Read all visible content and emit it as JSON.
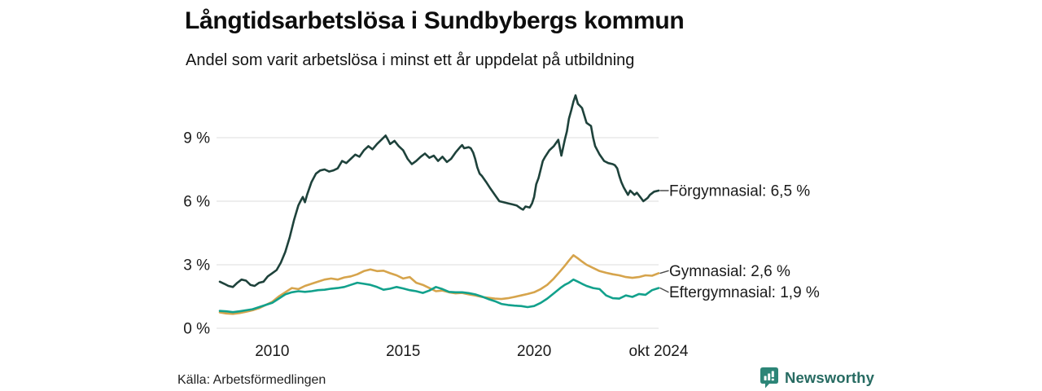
{
  "branding": {
    "name": "Newsworthy",
    "icon": "bar-chart-speech-bubble-icon"
  },
  "colors": {
    "background": "#ffffff",
    "grid": "#e3e3e3",
    "axis_text": "#1a1a1a",
    "leader": "#4a4a4a",
    "title_text": "#0d0d0d",
    "brand_teal": "#2c8577",
    "brand_text": "#276b62"
  },
  "chart_data": {
    "type": "line",
    "title": "Långtidsarbetslösa i Sundbybergs kommun",
    "subtitle": "Andel som varit arbetslösa i minst ett år uppdelat på utbildning",
    "source": "Källa: Arbetsförmedlingen",
    "xlabel": "",
    "ylabel": "",
    "grid": true,
    "legend_position": "right-end-labels",
    "xlim": [
      2008,
      2024.75
    ],
    "ylim": [
      0,
      11.5
    ],
    "y_ticks": [
      {
        "value": 0,
        "label": "0 %"
      },
      {
        "value": 3,
        "label": "3 %"
      },
      {
        "value": 6,
        "label": "6 %"
      },
      {
        "value": 9,
        "label": "9 %"
      }
    ],
    "x_ticks": [
      {
        "value": 2010,
        "label": "2010"
      },
      {
        "value": 2015,
        "label": "2015"
      },
      {
        "value": 2020,
        "label": "2020"
      },
      {
        "value": 2024.75,
        "label": "okt 2024"
      }
    ],
    "series": [
      {
        "id": "gymnasial",
        "name": "Gymnasial",
        "label": "Gymnasial: 2,6 %",
        "end_value": "2,6 %",
        "color": "#d6a44c",
        "label_dy": -3,
        "points": [
          [
            2008.0,
            0.75
          ],
          [
            2008.25,
            0.7
          ],
          [
            2008.5,
            0.68
          ],
          [
            2008.75,
            0.72
          ],
          [
            2009.0,
            0.78
          ],
          [
            2009.25,
            0.85
          ],
          [
            2009.5,
            0.95
          ],
          [
            2009.75,
            1.1
          ],
          [
            2010.0,
            1.25
          ],
          [
            2010.25,
            1.5
          ],
          [
            2010.5,
            1.7
          ],
          [
            2010.75,
            1.9
          ],
          [
            2011.0,
            1.85
          ],
          [
            2011.25,
            2.0
          ],
          [
            2011.5,
            2.1
          ],
          [
            2011.75,
            2.2
          ],
          [
            2012.0,
            2.3
          ],
          [
            2012.25,
            2.35
          ],
          [
            2012.5,
            2.3
          ],
          [
            2012.75,
            2.4
          ],
          [
            2013.0,
            2.45
          ],
          [
            2013.25,
            2.55
          ],
          [
            2013.5,
            2.7
          ],
          [
            2013.75,
            2.78
          ],
          [
            2014.0,
            2.7
          ],
          [
            2014.25,
            2.72
          ],
          [
            2014.5,
            2.6
          ],
          [
            2014.75,
            2.5
          ],
          [
            2015.0,
            2.35
          ],
          [
            2015.25,
            2.42
          ],
          [
            2015.5,
            2.15
          ],
          [
            2015.75,
            2.05
          ],
          [
            2016.0,
            1.9
          ],
          [
            2016.25,
            1.75
          ],
          [
            2016.5,
            1.78
          ],
          [
            2016.75,
            1.7
          ],
          [
            2017.0,
            1.65
          ],
          [
            2017.25,
            1.67
          ],
          [
            2017.5,
            1.6
          ],
          [
            2017.75,
            1.55
          ],
          [
            2018.0,
            1.48
          ],
          [
            2018.25,
            1.44
          ],
          [
            2018.5,
            1.4
          ],
          [
            2018.75,
            1.38
          ],
          [
            2019.0,
            1.42
          ],
          [
            2019.25,
            1.48
          ],
          [
            2019.5,
            1.55
          ],
          [
            2019.75,
            1.62
          ],
          [
            2020.0,
            1.7
          ],
          [
            2020.25,
            1.85
          ],
          [
            2020.5,
            2.05
          ],
          [
            2020.75,
            2.35
          ],
          [
            2021.0,
            2.7
          ],
          [
            2021.17,
            2.95
          ],
          [
            2021.33,
            3.2
          ],
          [
            2021.5,
            3.45
          ],
          [
            2021.67,
            3.3
          ],
          [
            2021.83,
            3.15
          ],
          [
            2022.0,
            3.0
          ],
          [
            2022.25,
            2.85
          ],
          [
            2022.5,
            2.7
          ],
          [
            2022.75,
            2.62
          ],
          [
            2023.0,
            2.55
          ],
          [
            2023.25,
            2.5
          ],
          [
            2023.5,
            2.42
          ],
          [
            2023.75,
            2.38
          ],
          [
            2024.0,
            2.42
          ],
          [
            2024.25,
            2.5
          ],
          [
            2024.5,
            2.48
          ],
          [
            2024.75,
            2.6
          ]
        ]
      },
      {
        "id": "eftergymnasial",
        "name": "Eftergymnasial",
        "label": "Eftergymnasial: 1,9 %",
        "end_value": "1,9 %",
        "color": "#12a18c",
        "label_dy": 5,
        "points": [
          [
            2008.0,
            0.82
          ],
          [
            2008.25,
            0.8
          ],
          [
            2008.5,
            0.76
          ],
          [
            2008.75,
            0.8
          ],
          [
            2009.0,
            0.85
          ],
          [
            2009.25,
            0.9
          ],
          [
            2009.5,
            1.0
          ],
          [
            2009.75,
            1.1
          ],
          [
            2010.0,
            1.2
          ],
          [
            2010.25,
            1.4
          ],
          [
            2010.5,
            1.6
          ],
          [
            2010.75,
            1.7
          ],
          [
            2011.0,
            1.75
          ],
          [
            2011.25,
            1.72
          ],
          [
            2011.5,
            1.75
          ],
          [
            2011.75,
            1.8
          ],
          [
            2012.0,
            1.82
          ],
          [
            2012.25,
            1.87
          ],
          [
            2012.5,
            1.9
          ],
          [
            2012.75,
            1.95
          ],
          [
            2013.0,
            2.05
          ],
          [
            2013.25,
            2.15
          ],
          [
            2013.5,
            2.1
          ],
          [
            2013.75,
            2.05
          ],
          [
            2014.0,
            1.95
          ],
          [
            2014.25,
            1.82
          ],
          [
            2014.5,
            1.87
          ],
          [
            2014.75,
            1.95
          ],
          [
            2015.0,
            1.88
          ],
          [
            2015.25,
            1.8
          ],
          [
            2015.5,
            1.75
          ],
          [
            2015.75,
            1.67
          ],
          [
            2016.0,
            1.78
          ],
          [
            2016.25,
            1.95
          ],
          [
            2016.5,
            1.85
          ],
          [
            2016.75,
            1.72
          ],
          [
            2017.0,
            1.7
          ],
          [
            2017.25,
            1.7
          ],
          [
            2017.5,
            1.66
          ],
          [
            2017.75,
            1.6
          ],
          [
            2018.0,
            1.5
          ],
          [
            2018.25,
            1.38
          ],
          [
            2018.5,
            1.28
          ],
          [
            2018.75,
            1.15
          ],
          [
            2019.0,
            1.1
          ],
          [
            2019.25,
            1.07
          ],
          [
            2019.5,
            1.05
          ],
          [
            2019.75,
            1.0
          ],
          [
            2020.0,
            1.05
          ],
          [
            2020.25,
            1.2
          ],
          [
            2020.5,
            1.4
          ],
          [
            2020.75,
            1.65
          ],
          [
            2021.0,
            1.9
          ],
          [
            2021.17,
            2.05
          ],
          [
            2021.33,
            2.15
          ],
          [
            2021.5,
            2.3
          ],
          [
            2021.67,
            2.2
          ],
          [
            2021.83,
            2.1
          ],
          [
            2022.0,
            2.0
          ],
          [
            2022.25,
            1.9
          ],
          [
            2022.5,
            1.85
          ],
          [
            2022.75,
            1.55
          ],
          [
            2023.0,
            1.42
          ],
          [
            2023.25,
            1.4
          ],
          [
            2023.5,
            1.55
          ],
          [
            2023.75,
            1.48
          ],
          [
            2024.0,
            1.62
          ],
          [
            2024.25,
            1.58
          ],
          [
            2024.5,
            1.8
          ],
          [
            2024.75,
            1.9
          ]
        ]
      },
      {
        "id": "forgymnasial",
        "name": "Förgymnasial",
        "label": "Förgymnasial: 6,5 %",
        "end_value": "6,5 %",
        "color": "#1e423b",
        "label_dy": 0,
        "points": [
          [
            2008.0,
            2.2
          ],
          [
            2008.17,
            2.1
          ],
          [
            2008.33,
            2.0
          ],
          [
            2008.5,
            1.95
          ],
          [
            2008.67,
            2.15
          ],
          [
            2008.83,
            2.3
          ],
          [
            2009.0,
            2.25
          ],
          [
            2009.17,
            2.05
          ],
          [
            2009.33,
            2.0
          ],
          [
            2009.5,
            2.15
          ],
          [
            2009.67,
            2.2
          ],
          [
            2009.83,
            2.45
          ],
          [
            2010.0,
            2.6
          ],
          [
            2010.17,
            2.75
          ],
          [
            2010.33,
            3.1
          ],
          [
            2010.5,
            3.6
          ],
          [
            2010.67,
            4.3
          ],
          [
            2010.83,
            5.1
          ],
          [
            2011.0,
            5.8
          ],
          [
            2011.08,
            6.0
          ],
          [
            2011.17,
            6.2
          ],
          [
            2011.25,
            5.95
          ],
          [
            2011.33,
            6.3
          ],
          [
            2011.5,
            6.9
          ],
          [
            2011.67,
            7.3
          ],
          [
            2011.83,
            7.45
          ],
          [
            2012.0,
            7.5
          ],
          [
            2012.17,
            7.4
          ],
          [
            2012.33,
            7.45
          ],
          [
            2012.5,
            7.55
          ],
          [
            2012.67,
            7.9
          ],
          [
            2012.83,
            7.8
          ],
          [
            2013.0,
            8.0
          ],
          [
            2013.17,
            8.2
          ],
          [
            2013.33,
            8.1
          ],
          [
            2013.5,
            8.4
          ],
          [
            2013.67,
            8.6
          ],
          [
            2013.83,
            8.45
          ],
          [
            2014.0,
            8.7
          ],
          [
            2014.17,
            8.9
          ],
          [
            2014.33,
            9.1
          ],
          [
            2014.42,
            8.9
          ],
          [
            2014.5,
            8.7
          ],
          [
            2014.67,
            8.85
          ],
          [
            2014.83,
            8.6
          ],
          [
            2015.0,
            8.4
          ],
          [
            2015.17,
            8.0
          ],
          [
            2015.33,
            7.75
          ],
          [
            2015.5,
            7.9
          ],
          [
            2015.67,
            8.1
          ],
          [
            2015.83,
            8.25
          ],
          [
            2016.0,
            8.05
          ],
          [
            2016.17,
            8.15
          ],
          [
            2016.33,
            7.9
          ],
          [
            2016.5,
            8.1
          ],
          [
            2016.67,
            7.85
          ],
          [
            2016.83,
            8.0
          ],
          [
            2017.0,
            8.3
          ],
          [
            2017.17,
            8.55
          ],
          [
            2017.25,
            8.65
          ],
          [
            2017.33,
            8.5
          ],
          [
            2017.5,
            8.55
          ],
          [
            2017.58,
            8.5
          ],
          [
            2017.67,
            8.3
          ],
          [
            2017.75,
            8.0
          ],
          [
            2017.83,
            7.6
          ],
          [
            2017.92,
            7.3
          ],
          [
            2018.0,
            7.2
          ],
          [
            2018.17,
            6.9
          ],
          [
            2018.33,
            6.6
          ],
          [
            2018.5,
            6.3
          ],
          [
            2018.67,
            6.0
          ],
          [
            2018.83,
            5.95
          ],
          [
            2019.0,
            5.9
          ],
          [
            2019.17,
            5.85
          ],
          [
            2019.33,
            5.8
          ],
          [
            2019.5,
            5.65
          ],
          [
            2019.58,
            5.6
          ],
          [
            2019.67,
            5.75
          ],
          [
            2019.83,
            5.7
          ],
          [
            2019.92,
            5.9
          ],
          [
            2020.0,
            6.2
          ],
          [
            2020.08,
            6.8
          ],
          [
            2020.17,
            7.1
          ],
          [
            2020.33,
            7.9
          ],
          [
            2020.42,
            8.1
          ],
          [
            2020.58,
            8.4
          ],
          [
            2020.75,
            8.6
          ],
          [
            2020.92,
            8.9
          ],
          [
            2021.04,
            8.15
          ],
          [
            2021.17,
            8.9
          ],
          [
            2021.25,
            9.3
          ],
          [
            2021.33,
            9.9
          ],
          [
            2021.42,
            10.3
          ],
          [
            2021.5,
            10.7
          ],
          [
            2021.58,
            11.0
          ],
          [
            2021.67,
            10.6
          ],
          [
            2021.75,
            10.5
          ],
          [
            2021.83,
            10.4
          ],
          [
            2022.0,
            9.7
          ],
          [
            2022.17,
            9.55
          ],
          [
            2022.25,
            9.0
          ],
          [
            2022.33,
            8.6
          ],
          [
            2022.5,
            8.2
          ],
          [
            2022.67,
            7.9
          ],
          [
            2022.83,
            7.8
          ],
          [
            2023.0,
            7.75
          ],
          [
            2023.08,
            7.7
          ],
          [
            2023.17,
            7.55
          ],
          [
            2023.25,
            7.2
          ],
          [
            2023.33,
            6.9
          ],
          [
            2023.42,
            6.65
          ],
          [
            2023.58,
            6.3
          ],
          [
            2023.67,
            6.5
          ],
          [
            2023.83,
            6.3
          ],
          [
            2023.92,
            6.4
          ],
          [
            2024.08,
            6.15
          ],
          [
            2024.17,
            6.0
          ],
          [
            2024.33,
            6.15
          ],
          [
            2024.42,
            6.3
          ],
          [
            2024.58,
            6.45
          ],
          [
            2024.75,
            6.5
          ]
        ]
      }
    ]
  }
}
